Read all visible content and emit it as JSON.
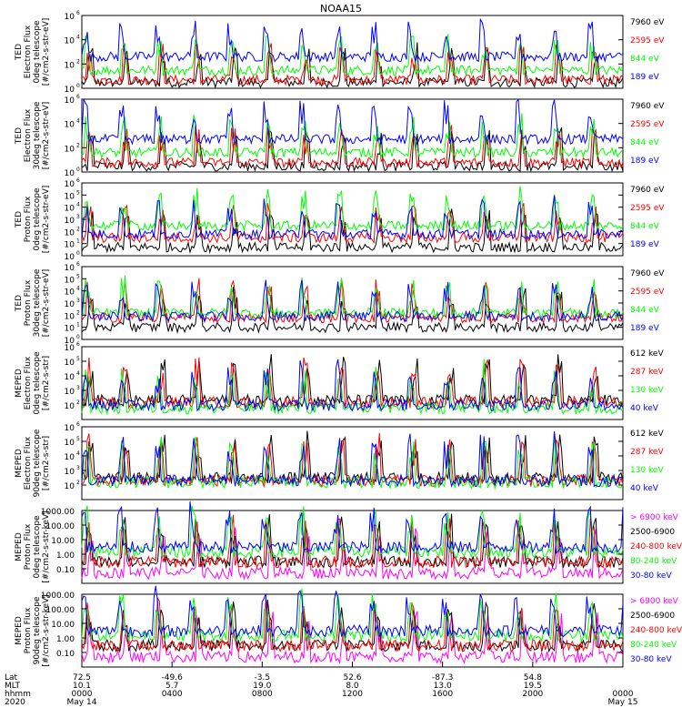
{
  "title": "NOAA15",
  "colors": {
    "black": "#000000",
    "red": "#ff0000",
    "green": "#00ff00",
    "blue": "#0000ff",
    "magenta": "#ff00ff"
  },
  "chart_data": [
    {
      "type": "line",
      "scale": "log",
      "ylim": [
        1,
        1000000
      ],
      "ylabel": [
        "TED",
        "Electron Flux",
        "0deg telescope",
        "[#/cm2-s-str-eV]"
      ],
      "yticks": [
        {
          "v": 1,
          "t": "10"
        },
        {
          "v": 100,
          "t": "10"
        },
        {
          "v": 10000,
          "t": "10"
        },
        {
          "v": 1000000,
          "t": "10"
        }
      ],
      "yticks_exp": [
        "0",
        "2",
        "4",
        "6"
      ],
      "series": [
        {
          "name": "7960 eV",
          "color": "#000000",
          "base": 3
        },
        {
          "name": "2595 eV",
          "color": "#ff0000",
          "base": 5
        },
        {
          "name": "844 eV",
          "color": "#00ff00",
          "base": 30
        },
        {
          "name": "189 eV",
          "color": "#0000ff",
          "base": 400
        }
      ]
    },
    {
      "type": "line",
      "scale": "log",
      "ylim": [
        1,
        1000000
      ],
      "ylabel": [
        "TED",
        "Electron Flux",
        "30deg telescope",
        "[#/cm2-s-str-eV]"
      ],
      "yticks": [
        {
          "v": 1,
          "t": "10"
        },
        {
          "v": 100,
          "t": "10"
        },
        {
          "v": 10000,
          "t": "10"
        },
        {
          "v": 1000000,
          "t": "10"
        }
      ],
      "yticks_exp": [
        "0",
        "2",
        "4",
        "6"
      ],
      "series": [
        {
          "name": "7960 eV",
          "color": "#000000",
          "base": 3
        },
        {
          "name": "2595 eV",
          "color": "#ff0000",
          "base": 6
        },
        {
          "name": "844 eV",
          "color": "#00ff00",
          "base": 40
        },
        {
          "name": "189 eV",
          "color": "#0000ff",
          "base": 500
        }
      ]
    },
    {
      "type": "line",
      "scale": "log",
      "ylim": [
        1,
        1000000
      ],
      "ylabel": [
        "TED",
        "Proton Flux",
        "0deg telescope",
        "[#/cm2-s-str-eV]"
      ],
      "yticks": [
        {
          "v": 1,
          "t": "10"
        },
        {
          "v": 10,
          "t": "10"
        },
        {
          "v": 100,
          "t": "10"
        },
        {
          "v": 1000,
          "t": "10"
        },
        {
          "v": 10000,
          "t": "10"
        },
        {
          "v": 100000,
          "t": "10"
        },
        {
          "v": 1000000,
          "t": "10"
        }
      ],
      "yticks_exp": [
        "0",
        "1",
        "2",
        "3",
        "4",
        "5",
        "6"
      ],
      "series": [
        {
          "name": "7960 eV",
          "color": "#000000",
          "base": 5
        },
        {
          "name": "2595 eV",
          "color": "#ff0000",
          "base": 30
        },
        {
          "name": "844 eV",
          "color": "#00ff00",
          "base": 300
        },
        {
          "name": "189 eV",
          "color": "#0000ff",
          "base": 60
        }
      ]
    },
    {
      "type": "line",
      "scale": "log",
      "ylim": [
        1,
        1000000
      ],
      "ylabel": [
        "TED",
        "Proton Flux",
        "30deg telescope",
        "[#/cm2-s-str-eV]"
      ],
      "yticks": [
        {
          "v": 1,
          "t": "10"
        },
        {
          "v": 10,
          "t": "10"
        },
        {
          "v": 100,
          "t": "10"
        },
        {
          "v": 1000,
          "t": "10"
        },
        {
          "v": 10000,
          "t": "10"
        },
        {
          "v": 100000,
          "t": "10"
        },
        {
          "v": 1000000,
          "t": "10"
        }
      ],
      "yticks_exp": [
        "0",
        "1",
        "2",
        "3",
        "4",
        "5",
        "6"
      ],
      "series": [
        {
          "name": "7960 eV",
          "color": "#000000",
          "base": 10
        },
        {
          "name": "2595 eV",
          "color": "#ff0000",
          "base": 60
        },
        {
          "name": "844 eV",
          "color": "#00ff00",
          "base": 150
        },
        {
          "name": "189 eV",
          "color": "#0000ff",
          "base": 80
        }
      ]
    },
    {
      "type": "line",
      "scale": "log",
      "ylim": [
        10,
        1000000
      ],
      "ylabel": [
        "MEPED",
        "Electron Flux",
        "0deg telescope",
        "[#/cm2-s-str]"
      ],
      "yticks": [
        {
          "v": 100,
          "t": "10"
        },
        {
          "v": 1000,
          "t": "10"
        },
        {
          "v": 10000,
          "t": "10"
        },
        {
          "v": 100000,
          "t": "10"
        },
        {
          "v": 1000000,
          "t": "10"
        }
      ],
      "yticks_exp": [
        "2",
        "3",
        "4",
        "5",
        "6"
      ],
      "series": [
        {
          "name": "612 keV",
          "color": "#000000",
          "base": 200
        },
        {
          "name": "287 keV",
          "color": "#ff0000",
          "base": 150
        },
        {
          "name": "130 keV",
          "color": "#00ff00",
          "base": 60
        },
        {
          "name": "40 keV",
          "color": "#0000ff",
          "base": 100
        }
      ]
    },
    {
      "type": "line",
      "scale": "log",
      "ylim": [
        10,
        1000000
      ],
      "ylabel": [
        "MEPED",
        "Electron Flux",
        "90deg telescope",
        "[#/cm2-s-str]"
      ],
      "yticks": [
        {
          "v": 100,
          "t": "10"
        },
        {
          "v": 1000,
          "t": "10"
        },
        {
          "v": 10000,
          "t": "10"
        },
        {
          "v": 100000,
          "t": "10"
        },
        {
          "v": 1000000,
          "t": "10"
        }
      ],
      "yticks_exp": [
        "2",
        "3",
        "4",
        "5",
        "6"
      ],
      "series": [
        {
          "name": "612 keV",
          "color": "#000000",
          "base": 300
        },
        {
          "name": "287 keV",
          "color": "#ff0000",
          "base": 200
        },
        {
          "name": "130 keV",
          "color": "#00ff00",
          "base": 150
        },
        {
          "name": "40 keV",
          "color": "#0000ff",
          "base": 200
        }
      ]
    },
    {
      "type": "line",
      "scale": "log",
      "ylim": [
        0.01,
        1000
      ],
      "ylabel": [
        "MEPED",
        "Proton Flux",
        "0deg telescope",
        "[#/cm2-s-str-keV]"
      ],
      "yticks": [
        {
          "v": 0.1,
          "t": "0.10"
        },
        {
          "v": 1,
          "t": "1.00"
        },
        {
          "v": 10,
          "t": "10.00"
        },
        {
          "v": 100,
          "t": "100.00"
        },
        {
          "v": 1000,
          "t": "1000.00"
        }
      ],
      "yticks_exp": [],
      "series": [
        {
          "name": "> 6900 keV",
          "color": "#ff00ff",
          "base": 0.05
        },
        {
          "name": "2500-6900",
          "color": "#000000",
          "base": 0.3
        },
        {
          "name": "240-800 keV",
          "color": "#ff0000",
          "base": 0.3
        },
        {
          "name": "80-240 keV",
          "color": "#00ff00",
          "base": 1.5
        },
        {
          "name": "30-80 keV",
          "color": "#0000ff",
          "base": 3
        }
      ]
    },
    {
      "type": "line",
      "scale": "log",
      "ylim": [
        0.01,
        1000
      ],
      "ylabel": [
        "MEPED",
        "Proton Flux",
        "90deg telescope",
        "[#/cm2-s-str-keV]"
      ],
      "yticks": [
        {
          "v": 0.1,
          "t": "0.10"
        },
        {
          "v": 1,
          "t": "1.00"
        },
        {
          "v": 10,
          "t": "10.00"
        },
        {
          "v": 100,
          "t": "100.00"
        },
        {
          "v": 1000,
          "t": "1000.00"
        }
      ],
      "yticks_exp": [],
      "series": [
        {
          "name": "> 6900 keV",
          "color": "#ff00ff",
          "base": 0.05
        },
        {
          "name": "2500-6900",
          "color": "#000000",
          "base": 0.3
        },
        {
          "name": "240-800 keV",
          "color": "#ff0000",
          "base": 0.3
        },
        {
          "name": "80-240 keV",
          "color": "#00ff00",
          "base": 1.5
        },
        {
          "name": "30-80 keV",
          "color": "#0000ff",
          "base": 3
        }
      ]
    }
  ],
  "xaxis": {
    "row_labels": [
      "Lat",
      "MLT",
      "hhmm",
      "2020"
    ],
    "ticks": [
      {
        "hhmm": "0000",
        "lat": "72.5",
        "mlt": "10.1",
        "date": "May 14"
      },
      {
        "hhmm": "0400",
        "lat": "-49.6",
        "mlt": "5.7",
        "date": ""
      },
      {
        "hhmm": "0800",
        "lat": "-3.5",
        "mlt": "19.0",
        "date": ""
      },
      {
        "hhmm": "1200",
        "lat": "52.6",
        "mlt": "8.0",
        "date": ""
      },
      {
        "hhmm": "1600",
        "lat": "-87.3",
        "mlt": "13.0",
        "date": ""
      },
      {
        "hhmm": "2000",
        "lat": "54.8",
        "mlt": "19.5",
        "date": ""
      },
      {
        "hhmm": "0000",
        "lat": "",
        "mlt": "",
        "date": "May 15"
      }
    ]
  }
}
